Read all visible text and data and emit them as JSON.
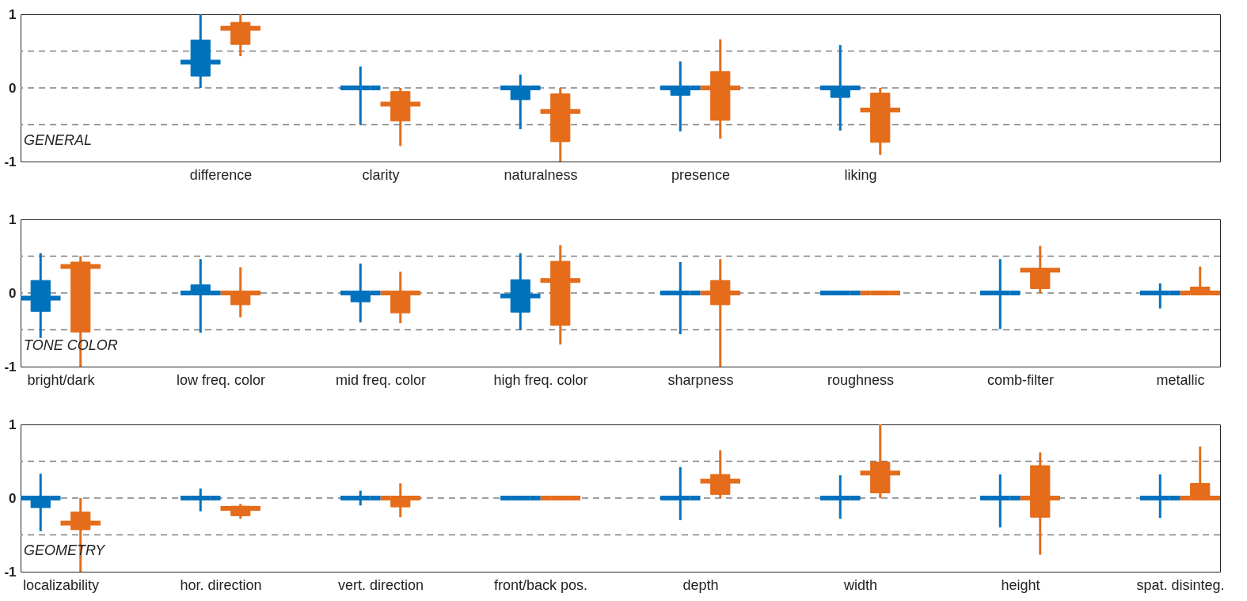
{
  "chart_data": [
    {
      "type": "box",
      "categories": [
        null,
        "difference",
        "clarity",
        "naturalness",
        "presence",
        "liking",
        null,
        null
      ],
      "series": [
        {
          "color": "#0072bd",
          "boxes": [
            null,
            {
              "low": 0,
              "q1": 0.16,
              "median": 0.35,
              "q3": 0.65,
              "high": 1
            },
            {
              "low": -0.5,
              "q1": 0,
              "median": 0,
              "q3": 0,
              "high": 0.29
            },
            {
              "low": -0.56,
              "q1": -0.16,
              "median": 0,
              "q3": 0,
              "high": 0.18
            },
            {
              "low": -0.59,
              "q1": -0.1,
              "median": 0,
              "q3": 0,
              "high": 0.36
            },
            {
              "low": -0.58,
              "q1": -0.13,
              "median": 0,
              "q3": 0,
              "high": 0.58
            },
            null,
            null
          ]
        },
        {
          "color": "#e46c1a",
          "boxes": [
            null,
            {
              "low": 0.43,
              "q1": 0.59,
              "median": 0.81,
              "q3": 0.89,
              "high": 1
            },
            {
              "low": -0.79,
              "q1": -0.45,
              "median": -0.22,
              "q3": -0.05,
              "high": 0
            },
            {
              "low": -1,
              "q1": -0.73,
              "median": -0.32,
              "q3": -0.08,
              "high": 0
            },
            {
              "low": -0.69,
              "q1": -0.44,
              "median": 0,
              "q3": 0.22,
              "high": 0.66
            },
            {
              "low": -0.91,
              "q1": -0.74,
              "median": -0.3,
              "q3": -0.07,
              "high": 0
            },
            null,
            null
          ]
        }
      ],
      "ylim": [
        -1,
        1
      ],
      "yticks": [
        -1,
        0,
        1
      ],
      "ref_lines": [
        {
          "axis": "y",
          "value": -0.5,
          "color": "#808080",
          "line_style": "dashed"
        },
        {
          "axis": "y",
          "value": 0,
          "color": "#808080",
          "line_style": "dashed"
        },
        {
          "axis": "y",
          "value": 0.5,
          "color": "#808080",
          "line_style": "dashed"
        }
      ],
      "annotations": [
        "GENERAL"
      ]
    },
    {
      "type": "box",
      "categories": [
        "bright/dark",
        "low freq. color",
        "mid freq. color",
        "high freq. color",
        "sharpness",
        "roughness",
        "comb-filter",
        "metallic"
      ],
      "series": [
        {
          "color": "#0072bd",
          "boxes": [
            {
              "low": -0.61,
              "q1": -0.25,
              "median": -0.07,
              "q3": 0.17,
              "high": 0.54
            },
            {
              "low": -0.54,
              "q1": 0,
              "median": 0,
              "q3": 0.11,
              "high": 0.46
            },
            {
              "low": -0.4,
              "q1": -0.12,
              "median": 0,
              "q3": 0,
              "high": 0.4
            },
            {
              "low": -0.5,
              "q1": -0.26,
              "median": -0.04,
              "q3": 0.18,
              "high": 0.54
            },
            {
              "low": -0.56,
              "q1": 0,
              "median": 0,
              "q3": 0,
              "high": 0.42
            },
            {
              "low": 0,
              "q1": 0,
              "median": 0,
              "q3": 0,
              "high": 0
            },
            {
              "low": -0.49,
              "q1": 0,
              "median": 0,
              "q3": 0,
              "high": 0.46
            },
            {
              "low": -0.21,
              "q1": 0,
              "median": 0,
              "q3": 0,
              "high": 0.13
            }
          ]
        },
        {
          "color": "#e46c1a",
          "boxes": [
            {
              "low": -1,
              "q1": -0.53,
              "median": 0.36,
              "q3": 0.42,
              "high": 0.5
            },
            {
              "low": -0.33,
              "q1": -0.16,
              "median": 0,
              "q3": 0,
              "high": 0.35
            },
            {
              "low": -0.41,
              "q1": -0.27,
              "median": 0,
              "q3": 0,
              "high": 0.29
            },
            {
              "low": -0.7,
              "q1": -0.44,
              "median": 0.17,
              "q3": 0.43,
              "high": 0.65
            },
            {
              "low": -1,
              "q1": -0.16,
              "median": 0,
              "q3": 0.17,
              "high": 0.46
            },
            {
              "low": 0,
              "q1": 0,
              "median": 0,
              "q3": 0,
              "high": 0
            },
            {
              "low": 0,
              "q1": 0.06,
              "median": 0.31,
              "q3": 0.33,
              "high": 0.64
            },
            {
              "low": 0,
              "q1": 0,
              "median": 0,
              "q3": 0.08,
              "high": 0.36
            }
          ]
        }
      ],
      "ylim": [
        -1,
        1
      ],
      "yticks": [
        -1,
        0,
        1
      ],
      "ref_lines": [
        {
          "axis": "y",
          "value": -0.5,
          "color": "#808080",
          "line_style": "dashed"
        },
        {
          "axis": "y",
          "value": 0,
          "color": "#808080",
          "line_style": "dashed"
        },
        {
          "axis": "y",
          "value": 0.5,
          "color": "#808080",
          "line_style": "dashed"
        }
      ],
      "annotations": [
        "TONE COLOR"
      ]
    },
    {
      "type": "box",
      "categories": [
        "localizability",
        "hor. direction",
        "vert. direction",
        "front/back pos.",
        "depth",
        "width",
        "height",
        "spat. disinteg."
      ],
      "series": [
        {
          "color": "#0072bd",
          "boxes": [
            {
              "low": -0.45,
              "q1": -0.13,
              "median": 0,
              "q3": 0,
              "high": 0.33
            },
            {
              "low": -0.18,
              "q1": 0,
              "median": 0,
              "q3": 0,
              "high": 0.13
            },
            {
              "low": -0.1,
              "q1": 0,
              "median": 0,
              "q3": 0,
              "high": 0.1
            },
            {
              "low": 0,
              "q1": 0,
              "median": 0,
              "q3": 0,
              "high": 0
            },
            {
              "low": -0.3,
              "q1": 0,
              "median": 0,
              "q3": 0,
              "high": 0.42
            },
            {
              "low": -0.28,
              "q1": 0,
              "median": 0,
              "q3": 0,
              "high": 0.31
            },
            {
              "low": -0.4,
              "q1": 0,
              "median": 0,
              "q3": 0,
              "high": 0.32
            },
            {
              "low": -0.27,
              "q1": 0,
              "median": 0,
              "q3": 0,
              "high": 0.32
            }
          ]
        },
        {
          "color": "#e46c1a",
          "boxes": [
            {
              "low": -1,
              "q1": -0.43,
              "median": -0.34,
              "q3": -0.19,
              "high": 0
            },
            {
              "low": -0.28,
              "q1": -0.24,
              "median": -0.14,
              "q3": -0.11,
              "high": -0.08
            },
            {
              "low": -0.26,
              "q1": -0.12,
              "median": 0,
              "q3": 0,
              "high": 0.2
            },
            {
              "low": 0,
              "q1": 0,
              "median": 0,
              "q3": 0,
              "high": 0
            },
            {
              "low": 0,
              "q1": 0.05,
              "median": 0.23,
              "q3": 0.32,
              "high": 0.65
            },
            {
              "low": 0,
              "q1": 0.07,
              "median": 0.34,
              "q3": 0.49,
              "high": 1
            },
            {
              "low": -0.77,
              "q1": -0.26,
              "median": 0,
              "q3": 0.44,
              "high": 0.62
            },
            {
              "low": 0,
              "q1": 0,
              "median": 0,
              "q3": 0.2,
              "high": 0.7
            }
          ]
        }
      ],
      "ylim": [
        -1,
        1
      ],
      "yticks": [
        -1,
        0,
        1
      ],
      "ref_lines": [
        {
          "axis": "y",
          "value": -0.5,
          "color": "#808080",
          "line_style": "dashed"
        },
        {
          "axis": "y",
          "value": 0,
          "color": "#808080",
          "line_style": "dashed"
        },
        {
          "axis": "y",
          "value": 0.5,
          "color": "#808080",
          "line_style": "dashed"
        }
      ],
      "annotations": [
        "GEOMETRY"
      ]
    }
  ]
}
